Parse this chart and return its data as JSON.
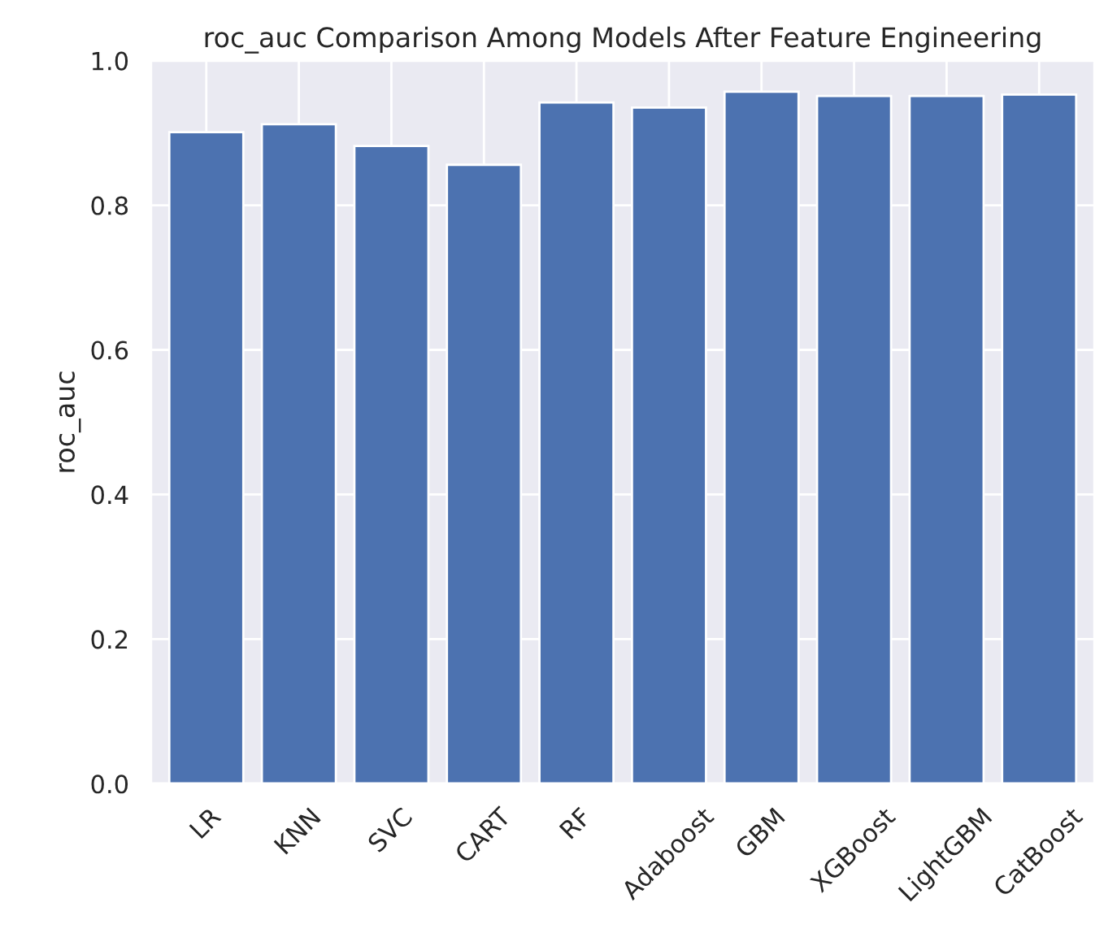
{
  "chart_data": {
    "type": "bar",
    "title": "roc_auc Comparison Among Models After Feature Engineering",
    "ylabel": "roc_auc",
    "categories": [
      "LR",
      "KNN",
      "SVC",
      "CART",
      "RF",
      "Adaboost",
      "GBM",
      "XGBoost",
      "LightGBM",
      "CatBoost"
    ],
    "values": [
      0.901,
      0.912,
      0.882,
      0.856,
      0.942,
      0.935,
      0.957,
      0.951,
      0.951,
      0.953
    ],
    "color": "#4c72b0",
    "ylim": [
      0,
      1
    ],
    "yticks": [
      {
        "value": 0,
        "label": "0.0"
      },
      0.2,
      0.4,
      0.6,
      0.8,
      {
        "value": 1,
        "label": "1.0"
      }
    ],
    "grid": true
  }
}
